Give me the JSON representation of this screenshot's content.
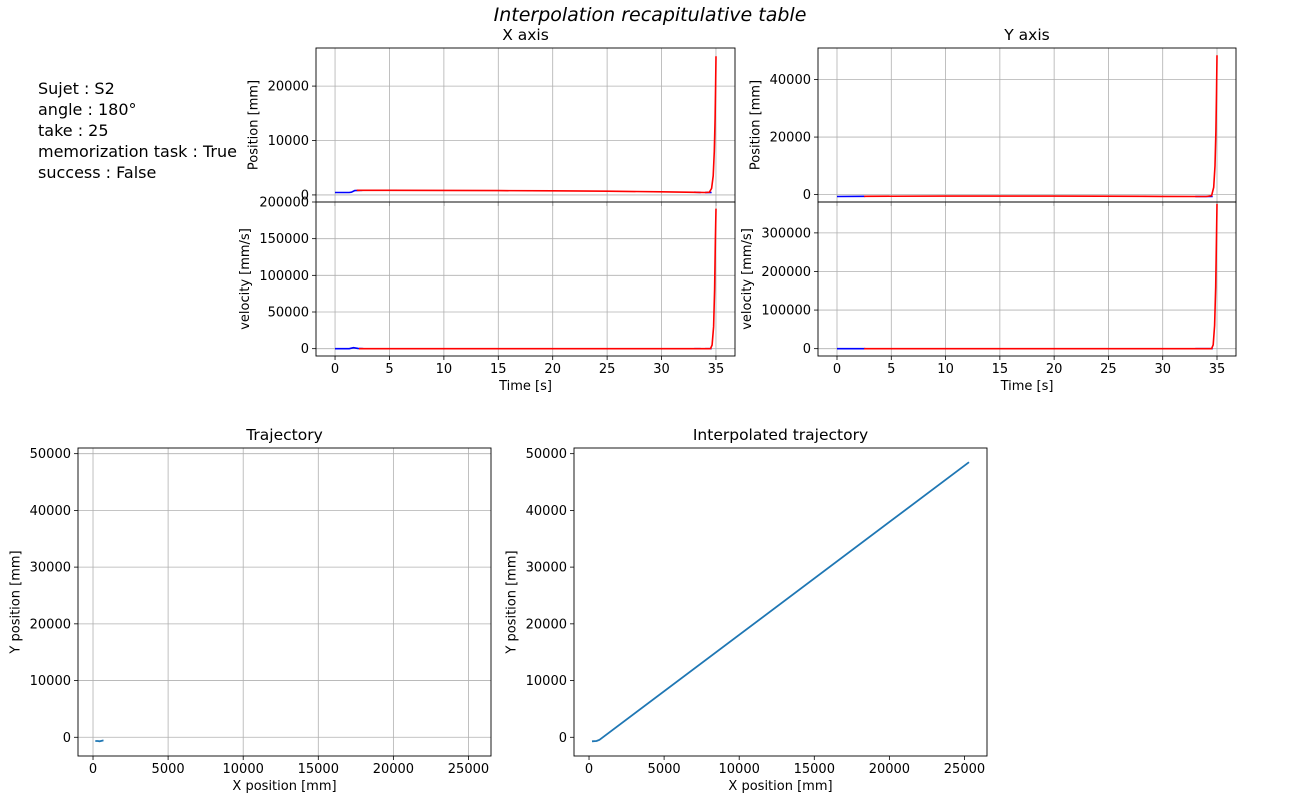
{
  "suptitle": "Interpolation recapitulative table",
  "info": {
    "subject": "Sujet : S2",
    "angle": "angle : 180°",
    "take": "take : 25",
    "memorization": "memorization task : True",
    "success": "success : False"
  },
  "colors": {
    "raw": "#0000ff",
    "interp": "#ff0000",
    "traj": "#1f77b4",
    "grid": "#b0b0b0"
  },
  "chart_data": [
    {
      "id": "x_position",
      "type": "line",
      "title": "X axis",
      "xlabel": "",
      "ylabel": "Position [mm]",
      "xlim": [
        -1.75,
        36.75
      ],
      "ylim": [
        -1300,
        27000
      ],
      "grid": true,
      "xticks": [
        0,
        5,
        10,
        15,
        20,
        25,
        30,
        35
      ],
      "xticklabels": [],
      "yticks": [
        0,
        10000,
        20000
      ],
      "yticklabels": [
        "0",
        "10000",
        "20000"
      ],
      "series": [
        {
          "role": "raw",
          "x": [
            0,
            1.3,
            1.5,
            1.8,
            2.5
          ],
          "y": [
            450,
            450,
            500,
            800,
            850
          ]
        },
        {
          "role": "raw",
          "x": [
            33.0,
            33.6
          ],
          "y": [
            500,
            450
          ]
        },
        {
          "role": "raw",
          "x": [
            34.0,
            34.6
          ],
          "y": [
            450,
            450
          ]
        },
        {
          "role": "interp",
          "x": [
            2.0,
            5,
            10,
            15,
            20,
            25,
            30,
            33,
            34,
            34.4,
            34.6,
            34.75,
            34.85,
            34.92,
            34.97,
            35.0
          ],
          "y": [
            850,
            850,
            830,
            800,
            750,
            680,
            580,
            480,
            450,
            500,
            1200,
            3500,
            8000,
            14000,
            20000,
            25500
          ]
        }
      ]
    },
    {
      "id": "y_position",
      "type": "line",
      "title": "Y axis",
      "xlabel": "",
      "ylabel": "Position [mm]",
      "xlim": [
        -1.75,
        36.75
      ],
      "ylim": [
        -2600,
        51000
      ],
      "grid": true,
      "xticks": [
        0,
        5,
        10,
        15,
        20,
        25,
        30,
        35
      ],
      "xticklabels": [],
      "yticks": [
        0,
        20000,
        40000
      ],
      "yticklabels": [
        "0",
        "20000",
        "40000"
      ],
      "series": [
        {
          "role": "raw",
          "x": [
            0,
            2.6
          ],
          "y": [
            -700,
            -600
          ]
        },
        {
          "role": "raw",
          "x": [
            33.0,
            34.6
          ],
          "y": [
            -700,
            -700
          ]
        },
        {
          "role": "interp",
          "x": [
            2.5,
            10,
            20,
            30,
            34,
            34.5,
            34.7,
            34.82,
            34.9,
            34.95,
            35.0
          ],
          "y": [
            -600,
            -550,
            -560,
            -650,
            -700,
            -400,
            2500,
            10000,
            22000,
            35000,
            48500
          ]
        }
      ]
    },
    {
      "id": "x_velocity",
      "type": "line",
      "title": "",
      "xlabel": "Time [s]",
      "ylabel": "velocity [mm/s]",
      "xlim": [
        -1.75,
        36.75
      ],
      "ylim": [
        -10000,
        200000
      ],
      "grid": true,
      "xticks": [
        0,
        5,
        10,
        15,
        20,
        25,
        30,
        35
      ],
      "xticklabels": [
        "0",
        "5",
        "10",
        "15",
        "20",
        "25",
        "30",
        "35"
      ],
      "yticks": [
        0,
        50000,
        100000,
        150000,
        200000
      ],
      "yticklabels": [
        "0",
        "50000",
        "100000",
        "150000",
        "200000"
      ],
      "series": [
        {
          "role": "raw",
          "x": [
            0,
            1.3,
            1.7,
            2.1,
            2.6
          ],
          "y": [
            0,
            0,
            1300,
            400,
            0
          ]
        },
        {
          "role": "raw",
          "x": [
            33.0,
            33.6
          ],
          "y": [
            0,
            0
          ]
        },
        {
          "role": "raw",
          "x": [
            34.0,
            34.6
          ],
          "y": [
            0,
            0
          ]
        },
        {
          "role": "interp",
          "x": [
            2.2,
            10,
            20,
            30,
            34.5,
            34.65,
            34.78,
            34.88,
            34.95,
            35.0
          ],
          "y": [
            0,
            0,
            0,
            0,
            0,
            5000,
            30000,
            80000,
            150000,
            191000
          ]
        }
      ]
    },
    {
      "id": "y_velocity",
      "type": "line",
      "title": "",
      "xlabel": "Time [s]",
      "ylabel": "velocity [mm/s]",
      "xlim": [
        -1.75,
        36.75
      ],
      "ylim": [
        -19000,
        380000
      ],
      "grid": true,
      "xticks": [
        0,
        5,
        10,
        15,
        20,
        25,
        30,
        35
      ],
      "xticklabels": [
        "0",
        "5",
        "10",
        "15",
        "20",
        "25",
        "30",
        "35"
      ],
      "yticks": [
        0,
        100000,
        200000,
        300000
      ],
      "yticklabels": [
        "0",
        "100000",
        "200000",
        "300000"
      ],
      "series": [
        {
          "role": "raw",
          "x": [
            0,
            2.6
          ],
          "y": [
            0,
            0
          ]
        },
        {
          "role": "raw",
          "x": [
            33.0,
            34.6
          ],
          "y": [
            0,
            0
          ]
        },
        {
          "role": "interp",
          "x": [
            2.5,
            10,
            20,
            30,
            34.5,
            34.65,
            34.78,
            34.88,
            34.95,
            35.0
          ],
          "y": [
            0,
            0,
            0,
            0,
            0,
            10000,
            60000,
            160000,
            290000,
            375000
          ]
        }
      ]
    },
    {
      "id": "trajectory",
      "type": "line",
      "title": "Trajectory",
      "xlabel": "X position [mm]",
      "ylabel": "Y position [mm]",
      "xlim": [
        -1000,
        26500
      ],
      "ylim": [
        -3300,
        51000
      ],
      "grid": true,
      "xticks": [
        0,
        5000,
        10000,
        15000,
        20000,
        25000
      ],
      "xticklabels": [
        "0",
        "5000",
        "10000",
        "15000",
        "20000",
        "25000"
      ],
      "yticks": [
        0,
        10000,
        20000,
        30000,
        40000,
        50000
      ],
      "yticklabels": [
        "0",
        "10000",
        "20000",
        "30000",
        "40000",
        "50000"
      ],
      "series": [
        {
          "role": "traj",
          "x": [
            150,
            300,
            450,
            600,
            700
          ],
          "y": [
            -650,
            -650,
            -700,
            -600,
            -550
          ]
        }
      ]
    },
    {
      "id": "interpolated_trajectory",
      "type": "line",
      "title": "Interpolated trajectory",
      "xlabel": "X position [mm]",
      "ylabel": "Y position [mm]",
      "xlim": [
        -1000,
        26500
      ],
      "ylim": [
        -3300,
        51000
      ],
      "grid": false,
      "xticks": [
        0,
        5000,
        10000,
        15000,
        20000,
        25000
      ],
      "xticklabels": [
        "0",
        "5000",
        "10000",
        "15000",
        "20000",
        "25000"
      ],
      "yticks": [
        0,
        10000,
        20000,
        30000,
        40000,
        50000
      ],
      "yticklabels": [
        "0",
        "10000",
        "20000",
        "30000",
        "40000",
        "50000"
      ],
      "series": [
        {
          "role": "traj",
          "x": [
            200,
            500,
            700,
            25300
          ],
          "y": [
            -700,
            -650,
            -450,
            48500
          ]
        }
      ]
    }
  ]
}
